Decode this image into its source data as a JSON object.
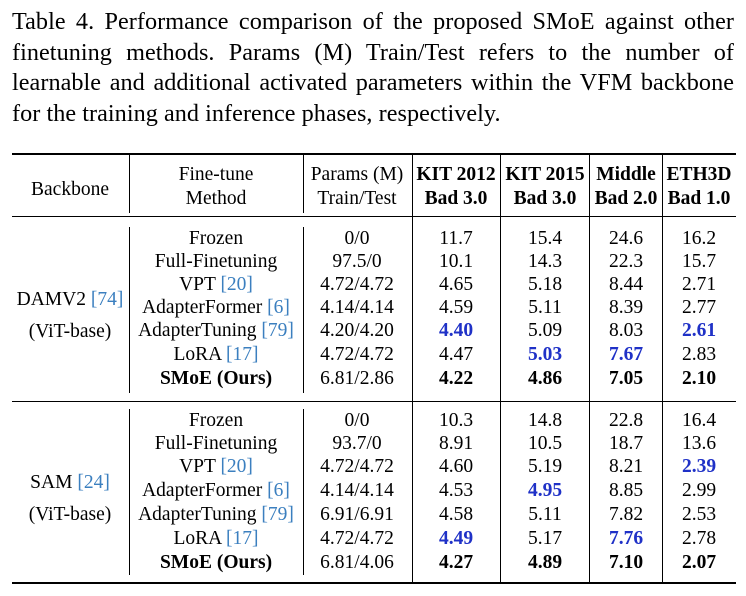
{
  "caption": "Table 4.  Performance comparison of the proposed SMoE against other finetuning methods.  Params (M) Train/Test refers to the number of learnable and additional activated parameters within the VFM backbone for the training and inference phases, respectively.",
  "header": {
    "backbone": "Backbone",
    "method_line1": "Fine-tune",
    "method_line2": "Method",
    "params_line1": "Params (M)",
    "params_line2": "Train/Test",
    "kit2012_line1": "KIT 2012",
    "kit2012_line2": "Bad 3.0",
    "kit2015_line1": "KIT 2015",
    "kit2015_line2": "Bad 3.0",
    "middle_line1": "Middle",
    "middle_line2": "Bad 2.0",
    "eth3d_line1": "ETH3D",
    "eth3d_line2": "Bad 1.0"
  },
  "groups": [
    {
      "backbone_name": "DAMV2",
      "backbone_ref": "[74]",
      "backbone_sub": "(ViT-base)",
      "rows": [
        {
          "method": "Frozen",
          "ref": "",
          "params": "0/0",
          "kit2012": "11.7",
          "kit2015": "15.4",
          "middle": "24.6",
          "eth3d": "16.2"
        },
        {
          "method": "Full-Finetuning",
          "ref": "",
          "params": "97.5/0",
          "kit2012": "10.1",
          "kit2015": "14.3",
          "middle": "22.3",
          "eth3d": "15.7"
        },
        {
          "method": "VPT",
          "ref": "[20]",
          "params": "4.72/4.72",
          "kit2012": "4.65",
          "kit2015": "5.18",
          "middle": "8.44",
          "eth3d": "2.71"
        },
        {
          "method": "AdapterFormer",
          "ref": "[6]",
          "params": "4.14/4.14",
          "kit2012": "4.59",
          "kit2015": "5.11",
          "middle": "8.39",
          "eth3d": "2.77"
        },
        {
          "method": "AdapterTuning",
          "ref": "[79]",
          "params": "4.20/4.20",
          "kit2012": "4.40",
          "kit2015": "5.09",
          "middle": "8.03",
          "eth3d": "2.61"
        },
        {
          "method": "LoRA",
          "ref": "[17]",
          "params": "4.72/4.72",
          "kit2012": "4.47",
          "kit2015": "5.03",
          "middle": "7.67",
          "eth3d": "2.83"
        },
        {
          "method": "SMoE (Ours)",
          "ref": "",
          "params": "6.81/2.86",
          "kit2012": "4.22",
          "kit2015": "4.86",
          "middle": "7.05",
          "eth3d": "2.10"
        }
      ]
    },
    {
      "backbone_name": "SAM",
      "backbone_ref": "[24]",
      "backbone_sub": "(ViT-base)",
      "rows": [
        {
          "method": "Frozen",
          "ref": "",
          "params": "0/0",
          "kit2012": "10.3",
          "kit2015": "14.8",
          "middle": "22.8",
          "eth3d": "16.4"
        },
        {
          "method": "Full-Finetuning",
          "ref": "",
          "params": "93.7/0",
          "kit2012": "8.91",
          "kit2015": "10.5",
          "middle": "18.7",
          "eth3d": "13.6"
        },
        {
          "method": "VPT",
          "ref": "[20]",
          "params": "4.72/4.72",
          "kit2012": "4.60",
          "kit2015": "5.19",
          "middle": "8.21",
          "eth3d": "2.39"
        },
        {
          "method": "AdapterFormer",
          "ref": "[6]",
          "params": "4.14/4.14",
          "kit2012": "4.53",
          "kit2015": "4.95",
          "middle": "8.85",
          "eth3d": "2.99"
        },
        {
          "method": "AdapterTuning",
          "ref": "[79]",
          "params": "6.91/6.91",
          "kit2012": "4.58",
          "kit2015": "5.11",
          "middle": "7.82",
          "eth3d": "2.53"
        },
        {
          "method": "LoRA",
          "ref": "[17]",
          "params": "4.72/4.72",
          "kit2012": "4.49",
          "kit2015": "5.17",
          "middle": "7.76",
          "eth3d": "2.78"
        },
        {
          "method": "SMoE (Ours)",
          "ref": "",
          "params": "6.81/4.06",
          "kit2012": "4.27",
          "kit2015": "4.89",
          "middle": "7.10",
          "eth3d": "2.07"
        }
      ]
    }
  ],
  "colors": {
    "best_second": "#1f31c7",
    "citation": "#3b7fbf"
  }
}
